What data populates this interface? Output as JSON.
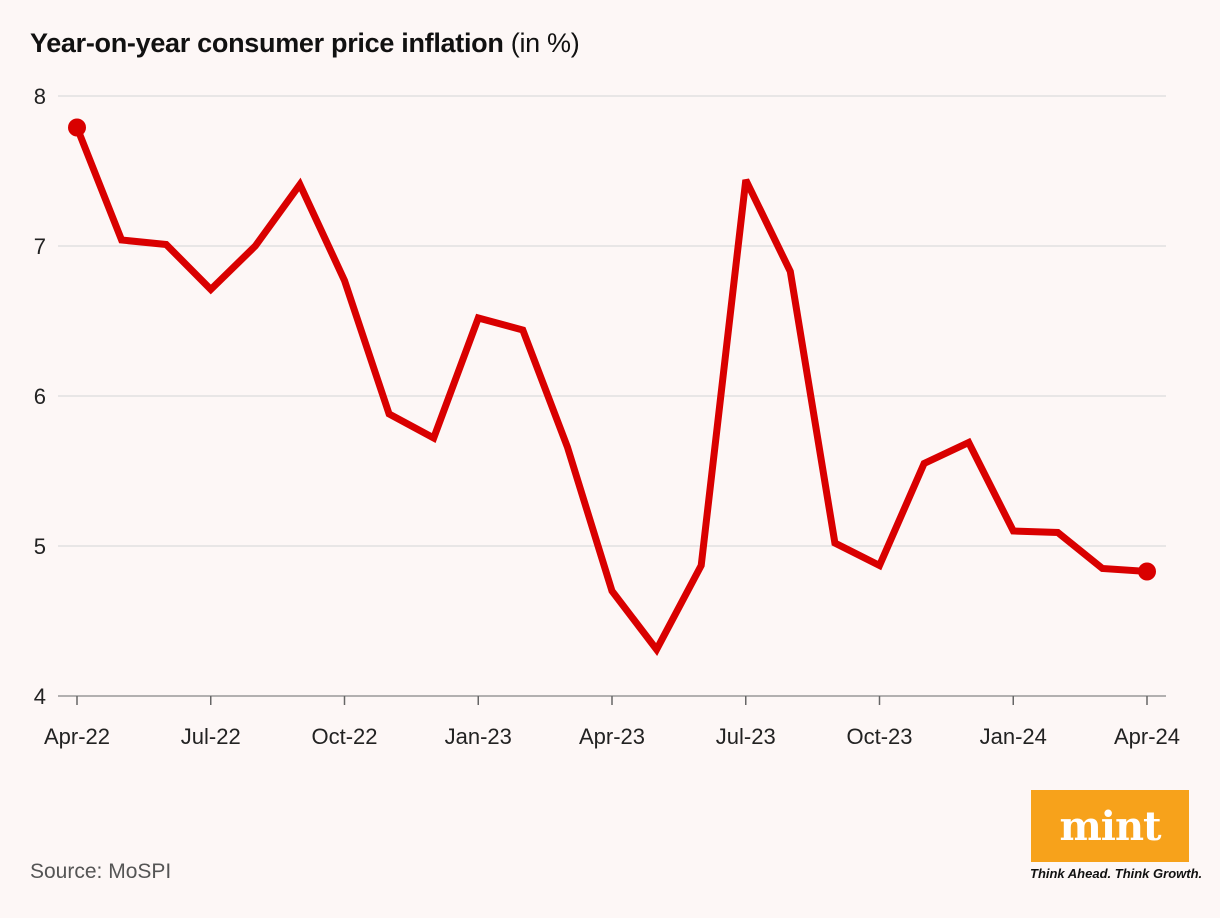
{
  "header": {
    "title_bold": "Year-on-year consumer price inflation",
    "title_unit": "(in %)"
  },
  "footer": {
    "source": "Source: MoSPI"
  },
  "brand": {
    "logo_text": "mint",
    "tagline": "Think Ahead. Think Growth.",
    "logo_color": "#f7a21b"
  },
  "chart_data": {
    "type": "line",
    "title": "Year-on-year consumer price inflation (in %)",
    "xlabel": "",
    "ylabel": "",
    "ylim": [
      4,
      8
    ],
    "yticks": [
      4,
      5,
      6,
      7,
      8
    ],
    "grid": true,
    "line_color": "#d90000",
    "x": [
      "Apr-22",
      "May-22",
      "Jun-22",
      "Jul-22",
      "Aug-22",
      "Sep-22",
      "Oct-22",
      "Nov-22",
      "Dec-22",
      "Jan-23",
      "Feb-23",
      "Mar-23",
      "Apr-23",
      "May-23",
      "Jun-23",
      "Jul-23",
      "Aug-23",
      "Sep-23",
      "Oct-23",
      "Nov-23",
      "Dec-23",
      "Jan-24",
      "Feb-24",
      "Mar-24",
      "Apr-24"
    ],
    "x_tick_labels": [
      "Apr-22",
      "Jul-22",
      "Oct-22",
      "Jan-23",
      "Apr-23",
      "Jul-23",
      "Oct-23",
      "Jan-24",
      "Apr-24"
    ],
    "series": [
      {
        "name": "CPI inflation",
        "values": [
          7.79,
          7.04,
          7.01,
          6.71,
          7.0,
          7.41,
          6.77,
          5.88,
          5.72,
          6.52,
          6.44,
          5.66,
          4.7,
          4.31,
          4.87,
          7.44,
          6.83,
          5.02,
          4.87,
          5.55,
          5.69,
          5.1,
          5.09,
          4.85,
          4.83
        ]
      }
    ]
  }
}
